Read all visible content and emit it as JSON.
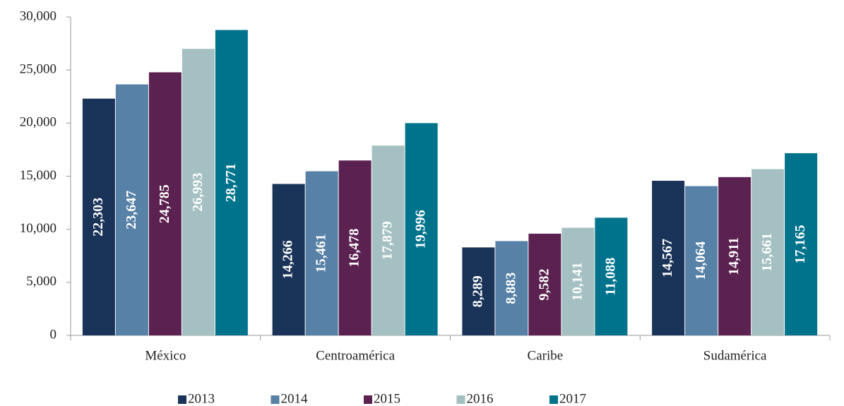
{
  "chart_data": {
    "type": "bar",
    "categories": [
      "México",
      "Centroamérica",
      "Caribe",
      "Sudamérica"
    ],
    "series": [
      {
        "name": "2013",
        "color": "#1a3358",
        "values": [
          22303,
          14266,
          8289,
          14567
        ],
        "value_labels": [
          "22,303",
          "14,266",
          "8,289",
          "14,567"
        ]
      },
      {
        "name": "2014",
        "color": "#5781a6",
        "values": [
          23647,
          15461,
          8883,
          14064
        ],
        "value_labels": [
          "23,647",
          "15,461",
          "8,883",
          "14,064"
        ]
      },
      {
        "name": "2015",
        "color": "#5b2150",
        "values": [
          24785,
          16478,
          9582,
          14911
        ],
        "value_labels": [
          "24,785",
          "16,478",
          "9,582",
          "14,911"
        ]
      },
      {
        "name": "2016",
        "color": "#a5c0c2",
        "values": [
          26993,
          17879,
          10141,
          15661
        ],
        "value_labels": [
          "26,993",
          "17,879",
          "10,141",
          "15,661"
        ]
      },
      {
        "name": "2017",
        "color": "#00738c",
        "values": [
          28771,
          19996,
          11088,
          17165
        ],
        "value_labels": [
          "28,771",
          "19,996",
          "11,088",
          "17,165"
        ]
      }
    ],
    "ylim": [
      0,
      30000
    ],
    "yticks": [
      0,
      {
        "value": 5000,
        "label": "5,000"
      },
      {
        "value": 10000,
        "label": "10,000"
      },
      {
        "value": 15000,
        "label": "15,000"
      },
      {
        "value": 20000,
        "label": "20,000"
      },
      {
        "value": 25000,
        "label": "25,000"
      },
      {
        "value": 30000,
        "label": "30,000"
      }
    ],
    "legend": "bottom"
  }
}
